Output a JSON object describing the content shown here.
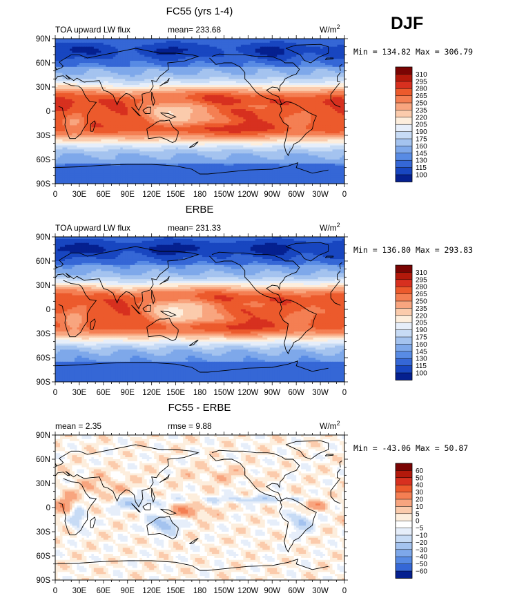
{
  "season": "DJF",
  "units": "W/m",
  "units_sup": "2",
  "coastline_color": "#000000",
  "chart_data": [
    {
      "type": "heatmap",
      "title": "FC55 (yrs 1-4)",
      "left_label": "TOA upward LW flux",
      "stat_text": "mean= 233.68",
      "mean": 233.68,
      "minmax_text": "Min = 134.82 Max = 306.79",
      "min": 134.82,
      "max": 306.79,
      "x_ticks": [
        "0",
        "30E",
        "60E",
        "90E",
        "120E",
        "150E",
        "180",
        "150W",
        "120W",
        "90W",
        "60W",
        "30W",
        "0"
      ],
      "y_ticks": [
        "90N",
        "60N",
        "30N",
        "0",
        "30S",
        "60S",
        "90S"
      ],
      "x_range_deg_east": [
        0,
        360
      ],
      "y_range_deg_lat": [
        -90,
        90
      ],
      "colorbar": {
        "levels": [
          "310",
          "295",
          "280",
          "265",
          "250",
          "235",
          "220",
          "205",
          "190",
          "175",
          "160",
          "145",
          "130",
          "115",
          "100"
        ],
        "colors": [
          "#7a0403",
          "#b3190b",
          "#d7301f",
          "#ec5a2c",
          "#f47f53",
          "#f8a57f",
          "#fbcbac",
          "#fdeedd",
          "#e6eefa",
          "#c7dbf5",
          "#a4c3ef",
          "#7ea8ea",
          "#588be4",
          "#3567d6",
          "#1846c0",
          "#05208f"
        ]
      },
      "model": "lw"
    },
    {
      "type": "heatmap",
      "title": "ERBE",
      "left_label": "TOA upward LW flux",
      "stat_text": "mean= 231.33",
      "mean": 231.33,
      "minmax_text": "Min = 136.80 Max = 293.83",
      "min": 136.8,
      "max": 293.83,
      "x_ticks": [
        "0",
        "30E",
        "60E",
        "90E",
        "120E",
        "150E",
        "180",
        "150W",
        "120W",
        "90W",
        "60W",
        "30W",
        "0"
      ],
      "y_ticks": [
        "90N",
        "60N",
        "30N",
        "0",
        "30S",
        "60S",
        "90S"
      ],
      "x_range_deg_east": [
        0,
        360
      ],
      "y_range_deg_lat": [
        -90,
        90
      ],
      "colorbar": {
        "levels": [
          "310",
          "295",
          "280",
          "265",
          "250",
          "235",
          "220",
          "205",
          "190",
          "175",
          "160",
          "145",
          "130",
          "115",
          "100"
        ],
        "colors": [
          "#7a0403",
          "#b3190b",
          "#d7301f",
          "#ec5a2c",
          "#f47f53",
          "#f8a57f",
          "#fbcbac",
          "#fdeedd",
          "#e6eefa",
          "#c7dbf5",
          "#a4c3ef",
          "#7ea8ea",
          "#588be4",
          "#3567d6",
          "#1846c0",
          "#05208f"
        ]
      },
      "model": "lw_obs"
    },
    {
      "type": "heatmap",
      "title": "FC55 - ERBE",
      "left_label": "mean =    2.35",
      "stat_text": "rmse =    9.88",
      "mean": 2.35,
      "rmse": 9.88,
      "minmax_text": "Min = -43.06 Max =  50.87",
      "min": -43.06,
      "max": 50.87,
      "x_ticks": [
        "0",
        "30E",
        "60E",
        "90E",
        "120E",
        "150E",
        "180",
        "150W",
        "120W",
        "90W",
        "60W",
        "30W",
        "0"
      ],
      "y_ticks": [
        "90N",
        "60N",
        "30N",
        "0",
        "30S",
        "60S",
        "90S"
      ],
      "x_range_deg_east": [
        0,
        360
      ],
      "y_range_deg_lat": [
        -90,
        90
      ],
      "colorbar": {
        "levels": [
          "60",
          "50",
          "40",
          "30",
          "20",
          "10",
          "5",
          "0",
          "−5",
          "−10",
          "−20",
          "−30",
          "−40",
          "−50",
          "−60"
        ],
        "colors": [
          "#7a0403",
          "#b3190b",
          "#d7301f",
          "#ec5a2c",
          "#f47f53",
          "#f8a57f",
          "#fbcbac",
          "#fdeedd",
          "#ffffff",
          "#e6eefa",
          "#c7dbf5",
          "#a4c3ef",
          "#7ea8ea",
          "#588be4",
          "#3567d6",
          "#05208f"
        ]
      },
      "model": "diff"
    }
  ]
}
